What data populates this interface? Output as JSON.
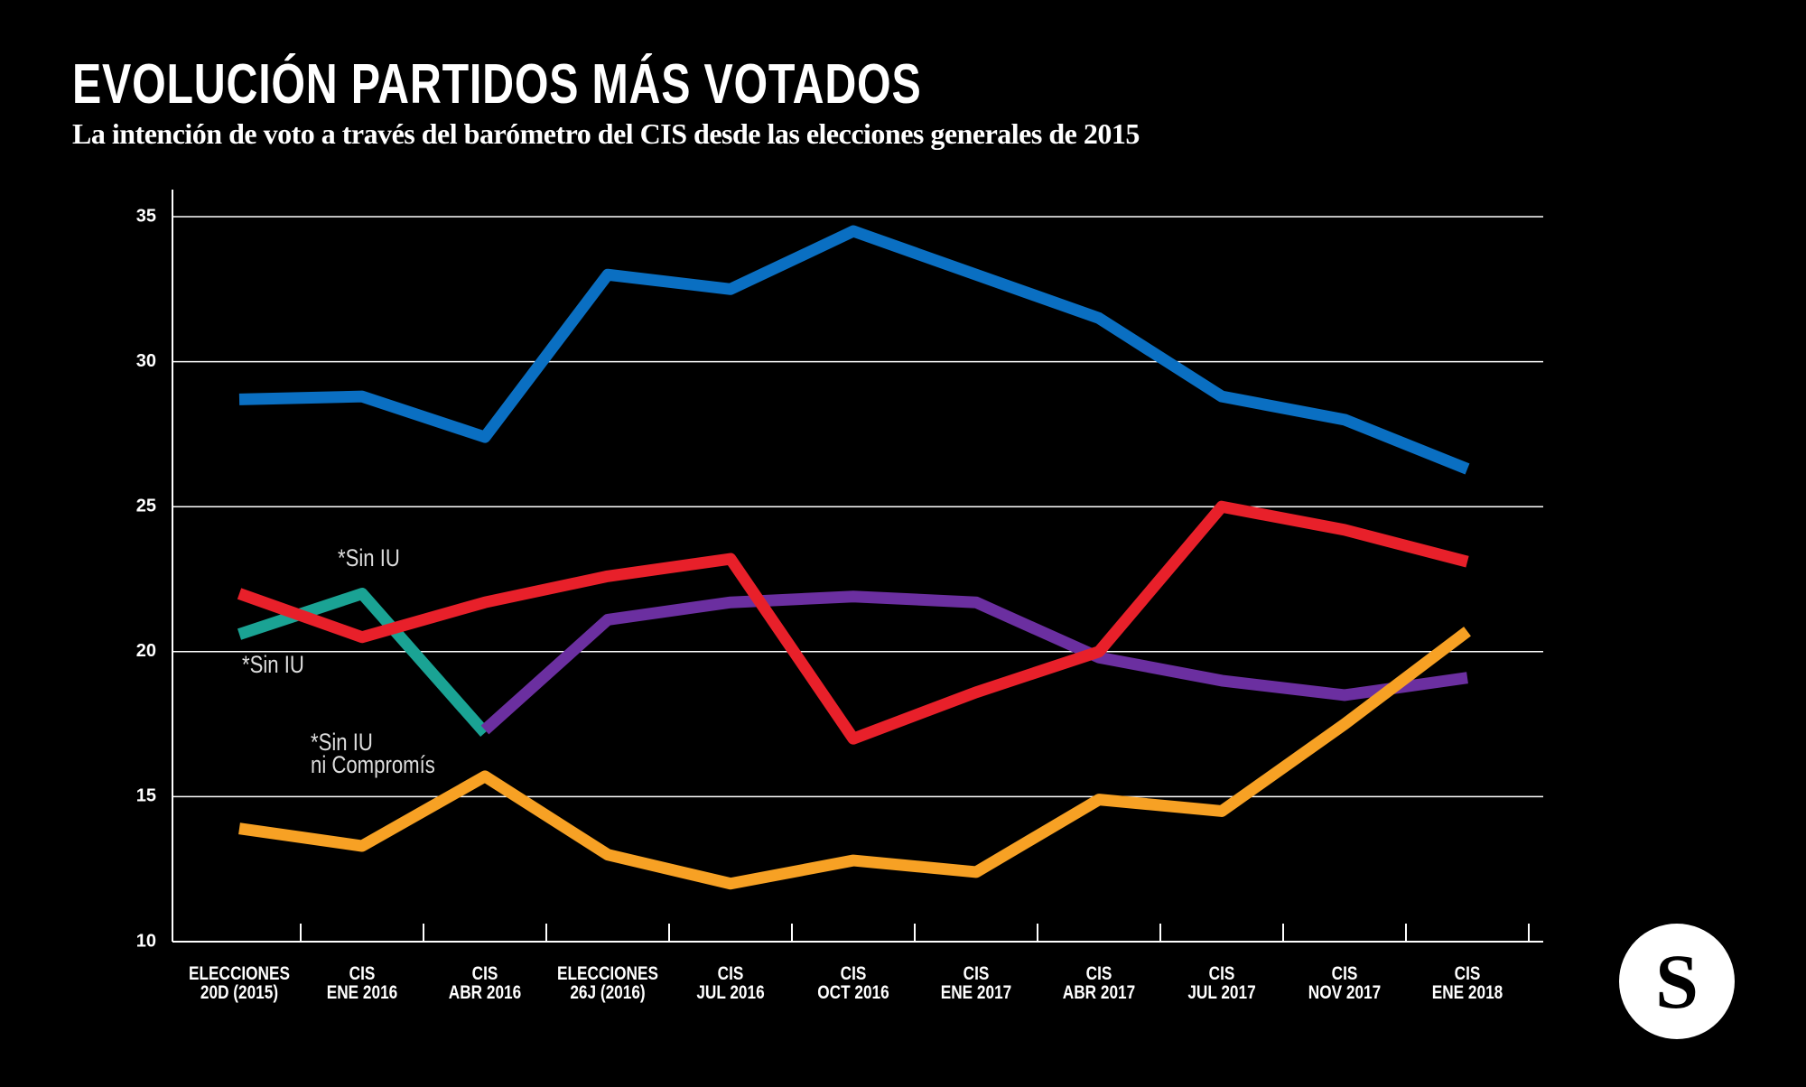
{
  "chart_data": {
    "type": "line",
    "title": "EVOLUCIÓN PARTIDOS MÁS VOTADOS",
    "subtitle": "La intención de voto a través del barómetro del CIS desde las elecciones generales de 2015",
    "categories": [
      "ELECCIONES\n20D (2015)",
      "CIS\nENE 2016",
      "CIS\nABR 2016",
      "ELECCIONES\n26J (2016)",
      "CIS\nJUL 2016",
      "CIS\nOCT 2016",
      "CIS\nENE 2017",
      "CIS\nABR 2017",
      "CIS\nJUL 2017",
      "CIS\nNOV 2017",
      "CIS\nENE 2018"
    ],
    "series": [
      {
        "color": "#0a6fc2",
        "values": [
          28.7,
          28.8,
          27.4,
          33.0,
          32.5,
          34.5,
          33.0,
          31.5,
          28.8,
          28.0,
          26.3
        ]
      },
      {
        "color": "#1aa394",
        "values": [
          20.6,
          22.0,
          17.2,
          null,
          null,
          null,
          null,
          null,
          null,
          null,
          null
        ]
      },
      {
        "color": "#6b2fa0",
        "values": [
          null,
          null,
          17.3,
          21.1,
          21.7,
          21.9,
          21.7,
          19.8,
          19.0,
          18.5,
          19.1
        ]
      },
      {
        "color": "#e8202a",
        "values": [
          22.0,
          20.5,
          21.7,
          22.6,
          23.2,
          17.0,
          18.6,
          20.0,
          25.0,
          24.2,
          23.1
        ]
      },
      {
        "color": "#f7a124",
        "values": [
          13.9,
          13.3,
          15.7,
          13.0,
          12.0,
          12.8,
          12.4,
          14.9,
          14.5,
          17.5,
          20.7
        ]
      }
    ],
    "ylim": [
      10,
      35
    ],
    "yticks": [
      10,
      15,
      20,
      25,
      30,
      35
    ],
    "grid": true,
    "annotations": [
      "*Sin IU",
      "*Sin IU",
      "*Sin IU\nni Compromís"
    ],
    "logo": "S"
  }
}
